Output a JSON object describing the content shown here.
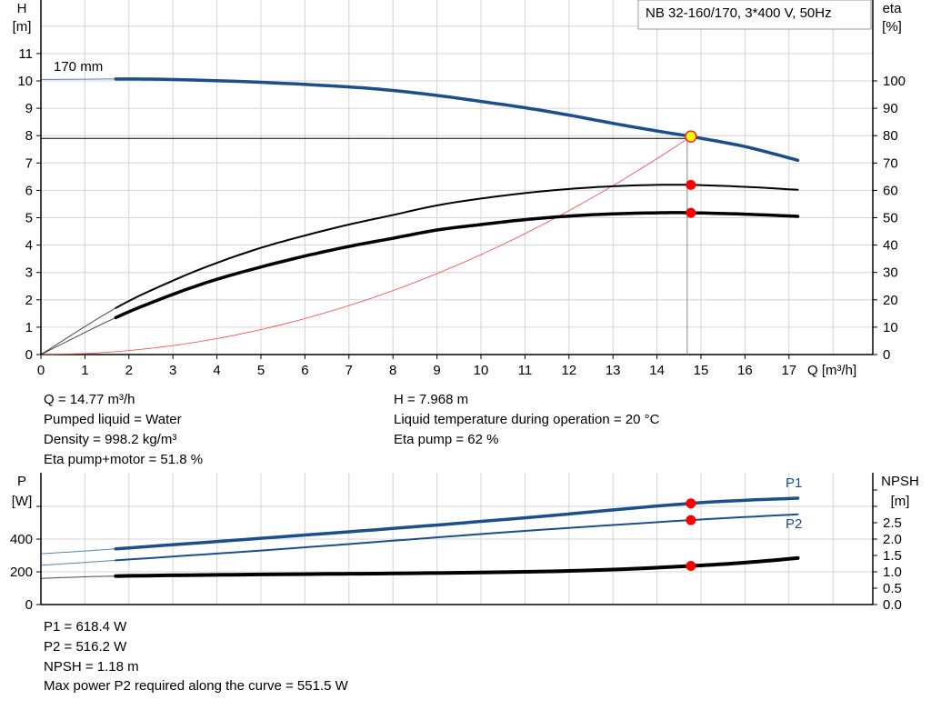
{
  "chart_data": [
    {
      "type": "line",
      "title_box": "NB 32-160/170, 3*400 V, 50Hz",
      "curve_label": "170 mm",
      "xlabel": "Q [m³/h]",
      "ylabel_left": [
        "H",
        "[m]"
      ],
      "ylabel_right": [
        "eta",
        "[%]"
      ],
      "xlim": [
        0,
        18
      ],
      "ylim_left": [
        0,
        12
      ],
      "ylim_right": [
        0,
        120
      ],
      "x_ticks": [
        0,
        1,
        2,
        3,
        4,
        5,
        6,
        7,
        8,
        9,
        10,
        11,
        12,
        13,
        14,
        15,
        16,
        17
      ],
      "y_ticks_left": [
        0,
        1,
        2,
        3,
        4,
        5,
        6,
        7,
        8,
        9,
        10,
        11
      ],
      "y_ticks_right": [
        0,
        10,
        20,
        30,
        40,
        50,
        60,
        70,
        80,
        90,
        100
      ],
      "grid": true,
      "series": [
        {
          "id": "head",
          "axis": "left",
          "color": "#1a4f8a",
          "extrapolated_until": 1.7,
          "points": [
            [
              0,
              10.05
            ],
            [
              1.7,
              10.07
            ],
            [
              3,
              10.05
            ],
            [
              5,
              9.95
            ],
            [
              7,
              9.78
            ],
            [
              8,
              9.65
            ],
            [
              9,
              9.47
            ],
            [
              10,
              9.25
            ],
            [
              11,
              9.02
            ],
            [
              12,
              8.75
            ],
            [
              13,
              8.45
            ],
            [
              14,
              8.17
            ],
            [
              14.77,
              7.968
            ],
            [
              16,
              7.6
            ],
            [
              17.2,
              7.1
            ]
          ]
        },
        {
          "id": "eta-pump",
          "axis": "right",
          "color": "#000000",
          "extrapolated_until": 1.7,
          "points": [
            [
              0,
              0
            ],
            [
              1.7,
              17
            ],
            [
              3,
              27
            ],
            [
              4,
              33.5
            ],
            [
              5,
              39
            ],
            [
              6,
              43.5
            ],
            [
              7,
              47.5
            ],
            [
              8,
              51
            ],
            [
              9,
              54.5
            ],
            [
              10,
              57
            ],
            [
              11,
              59
            ],
            [
              12,
              60.5
            ],
            [
              13,
              61.5
            ],
            [
              14,
              62
            ],
            [
              14.77,
              62
            ],
            [
              16,
              61.3
            ],
            [
              17.2,
              60.2
            ]
          ]
        },
        {
          "id": "eta-pump-motor",
          "axis": "right",
          "color": "#000000",
          "extrapolated_until": 1.7,
          "points": [
            [
              0,
              0
            ],
            [
              1.7,
              13.5
            ],
            [
              3,
              22
            ],
            [
              4,
              27.5
            ],
            [
              5,
              32
            ],
            [
              6,
              36
            ],
            [
              7,
              39.5
            ],
            [
              8,
              42.5
            ],
            [
              9,
              45.5
            ],
            [
              10,
              47.5
            ],
            [
              11,
              49.3
            ],
            [
              12,
              50.6
            ],
            [
              13,
              51.4
            ],
            [
              14,
              51.8
            ],
            [
              14.77,
              51.8
            ],
            [
              16,
              51.3
            ],
            [
              17.2,
              50.5
            ]
          ]
        },
        {
          "id": "system-curve",
          "axis": "left",
          "color": "#ff4040",
          "points": [
            [
              0,
              0
            ],
            [
              1,
              0.037
            ],
            [
              2,
              0.146
            ],
            [
              3,
              0.329
            ],
            [
              4,
              0.584
            ],
            [
              5,
              0.913
            ],
            [
              6,
              1.315
            ],
            [
              7,
              1.79
            ],
            [
              8,
              2.337
            ],
            [
              9,
              2.958
            ],
            [
              10,
              3.652
            ],
            [
              11,
              4.419
            ],
            [
              12,
              5.259
            ],
            [
              13,
              6.172
            ],
            [
              14,
              7.158
            ],
            [
              14.77,
              7.968
            ]
          ]
        }
      ],
      "operating_point": {
        "q": 14.77,
        "h": 7.968,
        "eta_pump": 62,
        "eta_pump_motor": 51.8
      }
    },
    {
      "type": "line",
      "ylabel_left": [
        "P",
        "[W]"
      ],
      "ylabel_right": [
        "NPSH",
        "[m]"
      ],
      "xlim": [
        0,
        18
      ],
      "ylim_left": [
        0,
        800
      ],
      "ylim_right": [
        0,
        4.0
      ],
      "y_ticks_left": [
        0,
        200,
        400
      ],
      "y_ticks_right": [
        "0.0",
        "0.5",
        "1.0",
        "1.5",
        "2.0",
        "2.5"
      ],
      "grid": true,
      "series": [
        {
          "id": "P1",
          "name": "P1",
          "axis": "left",
          "color": "#1a4f8a",
          "extrapolated_until": 1.7,
          "points": [
            [
              0,
              310
            ],
            [
              1.7,
              340
            ],
            [
              5,
              405
            ],
            [
              8,
              465
            ],
            [
              11,
              530
            ],
            [
              14.77,
              618.4
            ],
            [
              17.2,
              650
            ]
          ]
        },
        {
          "id": "P2",
          "name": "P2",
          "axis": "left",
          "color": "#1a4f8a",
          "extrapolated_until": 1.7,
          "points": [
            [
              0,
              240
            ],
            [
              1.7,
              270
            ],
            [
              5,
              330
            ],
            [
              8,
              390
            ],
            [
              11,
              450
            ],
            [
              14.77,
              516.2
            ],
            [
              17.2,
              551.5
            ]
          ]
        },
        {
          "id": "NPSH",
          "axis": "right",
          "color": "#000000",
          "extrapolated_until": 1.7,
          "points": [
            [
              0,
              0.8
            ],
            [
              1.7,
              0.87
            ],
            [
              5,
              0.92
            ],
            [
              8,
              0.95
            ],
            [
              11,
              1.0
            ],
            [
              13,
              1.07
            ],
            [
              14.77,
              1.18
            ],
            [
              16,
              1.28
            ],
            [
              17.2,
              1.42
            ]
          ]
        }
      ],
      "operating_point": {
        "q": 14.77,
        "p1": 618.4,
        "p2": 516.2,
        "npsh": 1.18
      }
    }
  ],
  "info_top": {
    "q": "Q = 14.77 m³/h",
    "liquid": "Pumped liquid = Water",
    "density": "Density = 998.2 kg/m³",
    "eta_pm": "Eta pump+motor = 51.8 %",
    "h": "H = 7.968 m",
    "temp": "Liquid temperature during operation = 20 °C",
    "eta_pump": "Eta pump = 62 %"
  },
  "info_bottom": {
    "p1": "P1 = 618.4 W",
    "p2": "P2 = 516.2 W",
    "npsh": "NPSH = 1.18 m",
    "pmax": "Max power P2 required along the curve = 551.5 W"
  }
}
